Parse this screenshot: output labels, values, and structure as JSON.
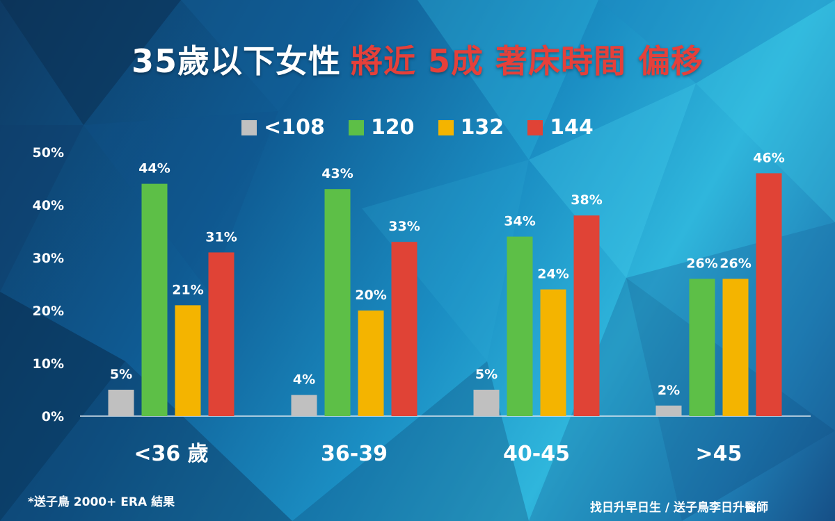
{
  "title": {
    "part1": "35歲以下女性",
    "part2": "將近 5成 著床時間 偏移"
  },
  "colors": {
    "title_white": "#ffffff",
    "title_red": "#e5403a",
    "series": [
      "#c0c0c0",
      "#5dbf47",
      "#f4b400",
      "#e04336"
    ]
  },
  "chart_data": {
    "type": "bar",
    "categories": [
      "<36 歲",
      "36-39",
      "40-45",
      ">45"
    ],
    "series": [
      {
        "name": "<108",
        "values": [
          5,
          4,
          5,
          2
        ]
      },
      {
        "name": "120",
        "values": [
          44,
          43,
          34,
          26
        ]
      },
      {
        "name": "132",
        "values": [
          21,
          20,
          24,
          26
        ]
      },
      {
        "name": "144",
        "values": [
          31,
          33,
          38,
          46
        ]
      }
    ],
    "ylim": [
      0,
      50
    ],
    "yticks": [
      "0%",
      "10%",
      "20%",
      "30%",
      "40%",
      "50%"
    ],
    "data_labels": [
      [
        "5%",
        "4%",
        "5%",
        "2%"
      ],
      [
        "44%",
        "43%",
        "34%",
        "26%"
      ],
      [
        "21%",
        "20%",
        "24%",
        "26%"
      ],
      [
        "31%",
        "33%",
        "38%",
        "46%"
      ]
    ],
    "legend_position": "top-center",
    "grid": false
  },
  "footer": {
    "left": "*送子鳥 2000+ ERA 結果",
    "right": "找日升早日生 / 送子鳥李日升醫師"
  }
}
